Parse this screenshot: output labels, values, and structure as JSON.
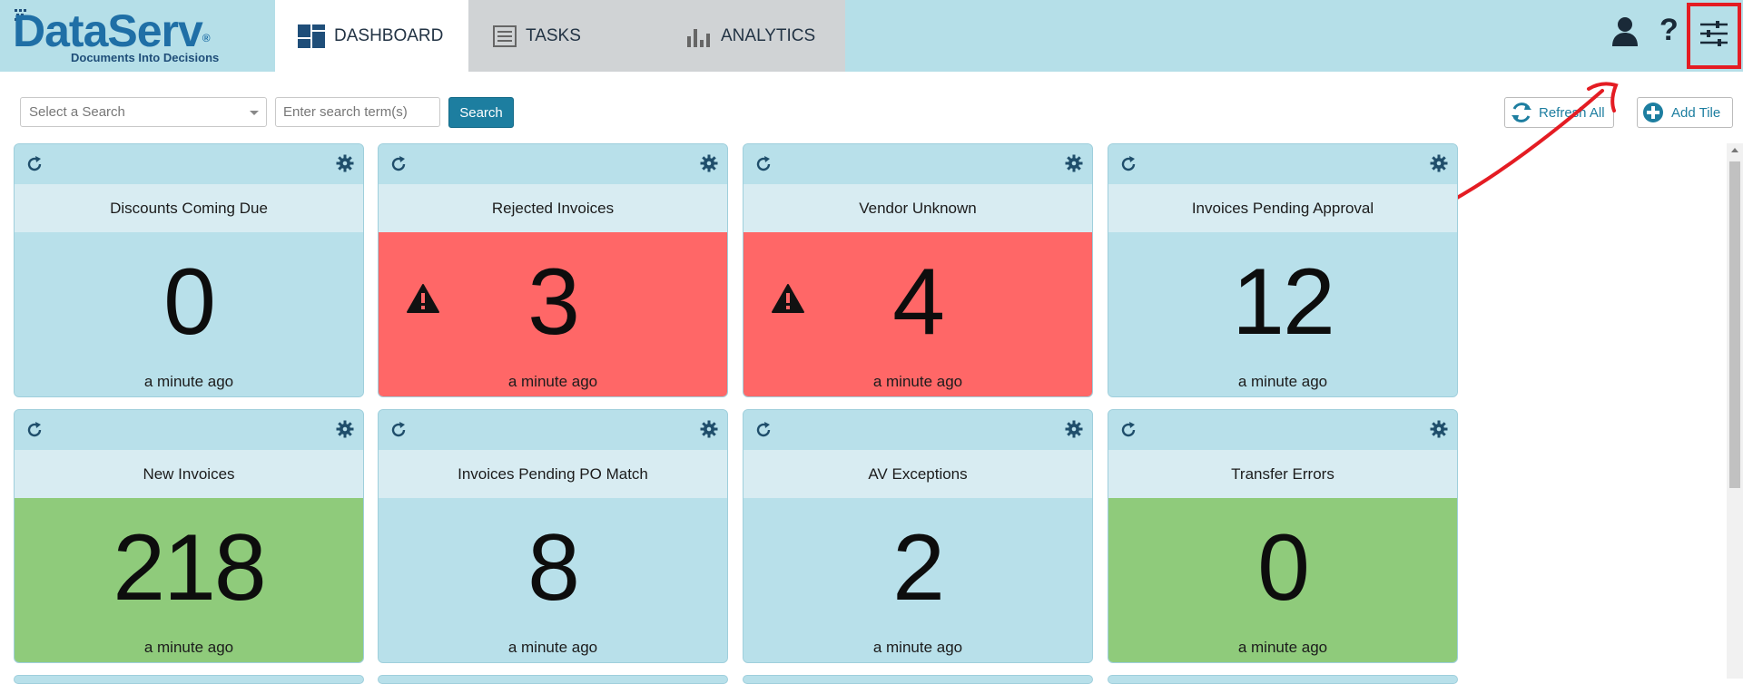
{
  "app": {
    "logo_text": "DataServ",
    "logo_reg": "®",
    "tagline": "Documents Into Decisions"
  },
  "nav": {
    "tabs": [
      {
        "label": "DASHBOARD",
        "icon": "dashboard-icon",
        "active": true
      },
      {
        "label": "TASKS",
        "icon": "tasks-list-icon",
        "active": false
      },
      {
        "label": "ANALYTICS",
        "icon": "bar-chart-icon",
        "active": false
      }
    ]
  },
  "header_icons": [
    "user-icon",
    "help-icon",
    "settings-sliders-icon"
  ],
  "search": {
    "select_placeholder": "Select a Search",
    "term_placeholder": "Enter search term(s)",
    "button_label": "Search"
  },
  "toolbar": {
    "refresh_all_label": "Refresh All",
    "add_tile_label": "Add Tile"
  },
  "colors": {
    "topbar": "#b5dfe8",
    "tile_normal": "#b8e0ea",
    "tile_alert": "#ff6767",
    "tile_good": "#8fcb7b",
    "accent": "#1d7ea0",
    "annotation": "#e41c23"
  },
  "tiles": [
    {
      "title": "Discounts Coming Due",
      "value": "0",
      "time": "a minute ago",
      "status": "normal",
      "warning": false
    },
    {
      "title": "Rejected Invoices",
      "value": "3",
      "time": "a minute ago",
      "status": "alert",
      "warning": true
    },
    {
      "title": "Vendor Unknown",
      "value": "4",
      "time": "a minute ago",
      "status": "alert",
      "warning": true
    },
    {
      "title": "Invoices Pending Approval",
      "value": "12",
      "time": "a minute ago",
      "status": "normal",
      "warning": false
    },
    {
      "title": "New Invoices",
      "value": "218",
      "time": "a minute ago",
      "status": "good",
      "warning": false
    },
    {
      "title": "Invoices Pending PO Match",
      "value": "8",
      "time": "a minute ago",
      "status": "normal",
      "warning": false
    },
    {
      "title": "AV Exceptions",
      "value": "2",
      "time": "a minute ago",
      "status": "normal",
      "warning": false
    },
    {
      "title": "Transfer Errors",
      "value": "0",
      "time": "a minute ago",
      "status": "good",
      "warning": false
    }
  ]
}
